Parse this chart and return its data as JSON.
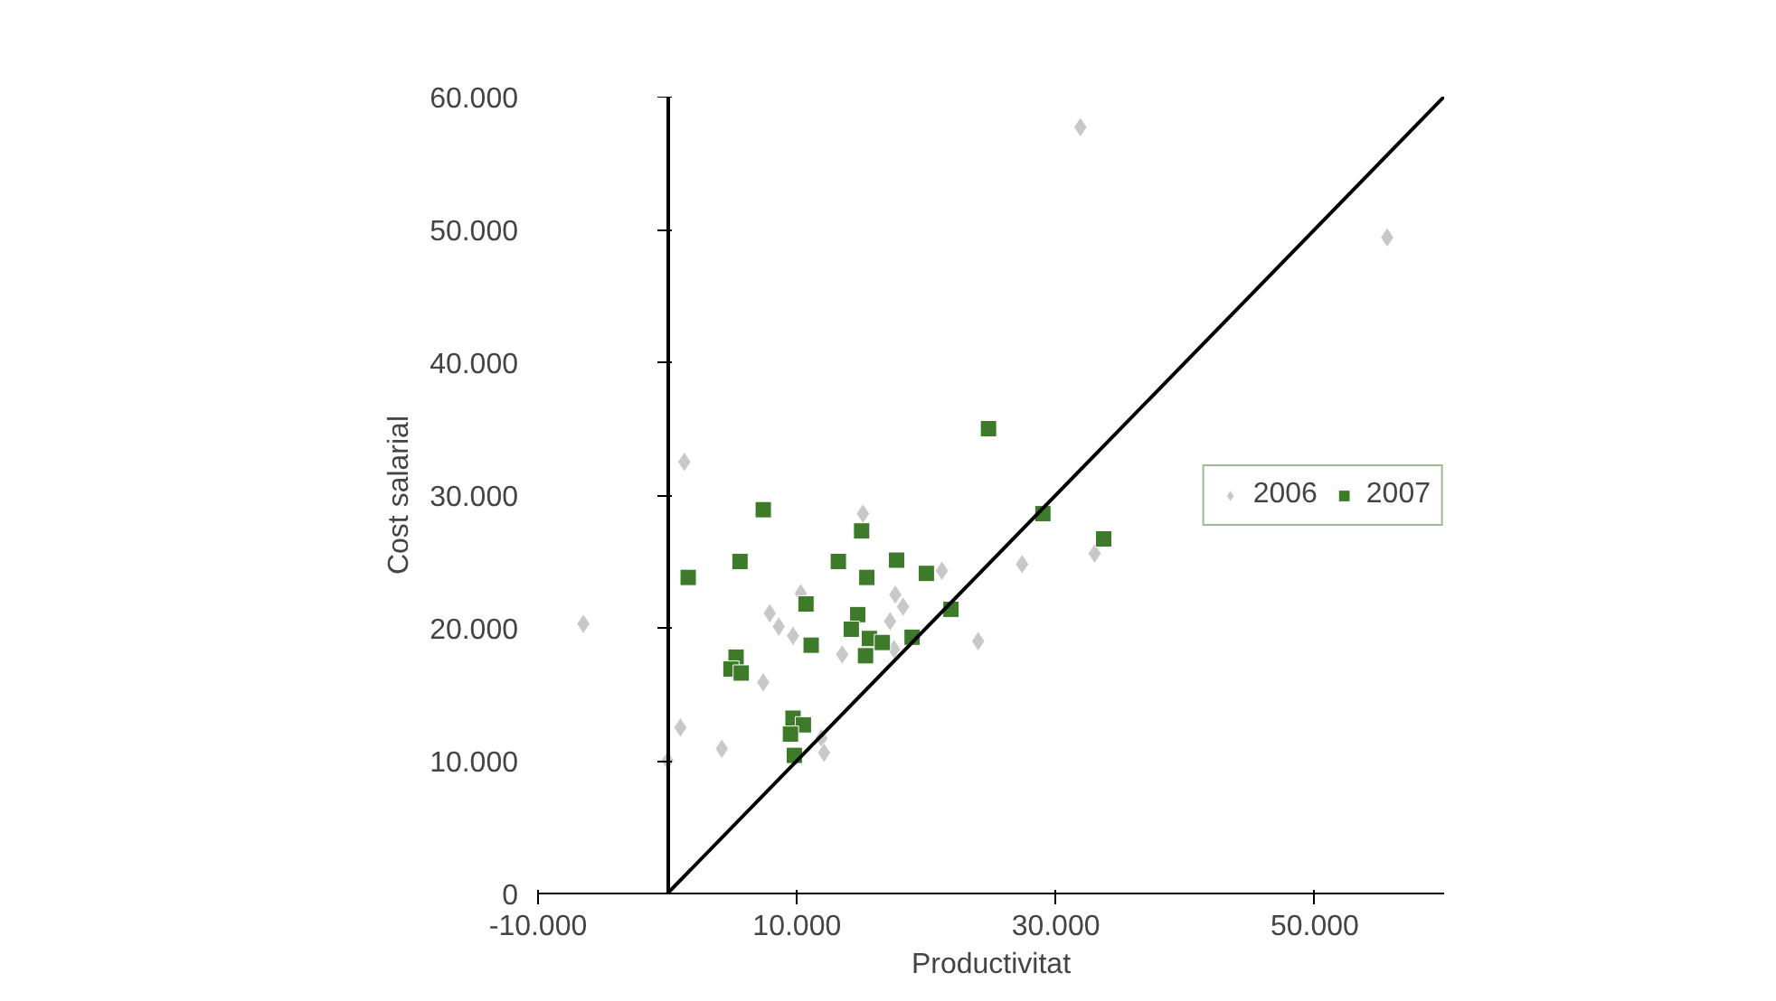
{
  "chart_data": {
    "type": "scatter",
    "xlabel": "Productivitat",
    "ylabel": "Cost salarial",
    "xlim": [
      -10000,
      60000
    ],
    "ylim": [
      0,
      60000
    ],
    "xticks": [
      {
        "value": -10000,
        "label": "-10.000"
      },
      {
        "value": 10000,
        "label": "10.000"
      },
      {
        "value": 30000,
        "label": "30.000"
      },
      {
        "value": 50000,
        "label": "50.000"
      }
    ],
    "yticks": [
      0,
      {
        "value": 10000,
        "label": "10.000"
      },
      {
        "value": 20000,
        "label": "20.000"
      },
      {
        "value": 30000,
        "label": "30.000"
      },
      {
        "value": 40000,
        "label": "40.000"
      },
      {
        "value": 50000,
        "label": "50.000"
      },
      {
        "value": 60000,
        "label": "60.000"
      }
    ],
    "grid": false,
    "legend": "right",
    "series": [
      {
        "name": "2006",
        "color": "#c8c8c8",
        "marker": "diamond",
        "x": [
          1300,
          -6500,
          15100,
          10300,
          7900,
          8600,
          9700,
          7400,
          1000,
          4200,
          0,
          11900,
          12100,
          13500,
          17600,
          18200,
          17200,
          17500,
          21200,
          24000,
          31900,
          55600,
          33000,
          27400
        ],
        "values": [
          32500,
          20300,
          28600,
          22600,
          21100,
          20100,
          19400,
          15900,
          12500,
          10900,
          10000,
          11700,
          10600,
          18000,
          22500,
          21600,
          20500,
          18400,
          24300,
          19000,
          57700,
          49400,
          25600,
          24800
        ]
      },
      {
        "name": "2007",
        "color": "#3d7a2a",
        "marker": "square",
        "x": [
          7400,
          15000,
          5600,
          1600,
          13200,
          15400,
          17700,
          20000,
          10700,
          14700,
          14200,
          11100,
          15600,
          16600,
          15300,
          18900,
          21900,
          24800,
          5300,
          4900,
          5700,
          9700,
          10500,
          9500,
          9800,
          29000,
          33700
        ],
        "values": [
          28900,
          27300,
          25000,
          23800,
          25000,
          23800,
          25100,
          24100,
          21800,
          21000,
          19900,
          18700,
          19200,
          18900,
          17900,
          19300,
          21400,
          35000,
          17800,
          16900,
          16600,
          13200,
          12700,
          12000,
          10400,
          28600,
          26700
        ]
      },
      {
        "type": "line",
        "color": "#000000",
        "marker": "none",
        "line_style": "solid",
        "x": [
          0,
          60000
        ],
        "values": [
          0,
          60000
        ]
      }
    ]
  }
}
